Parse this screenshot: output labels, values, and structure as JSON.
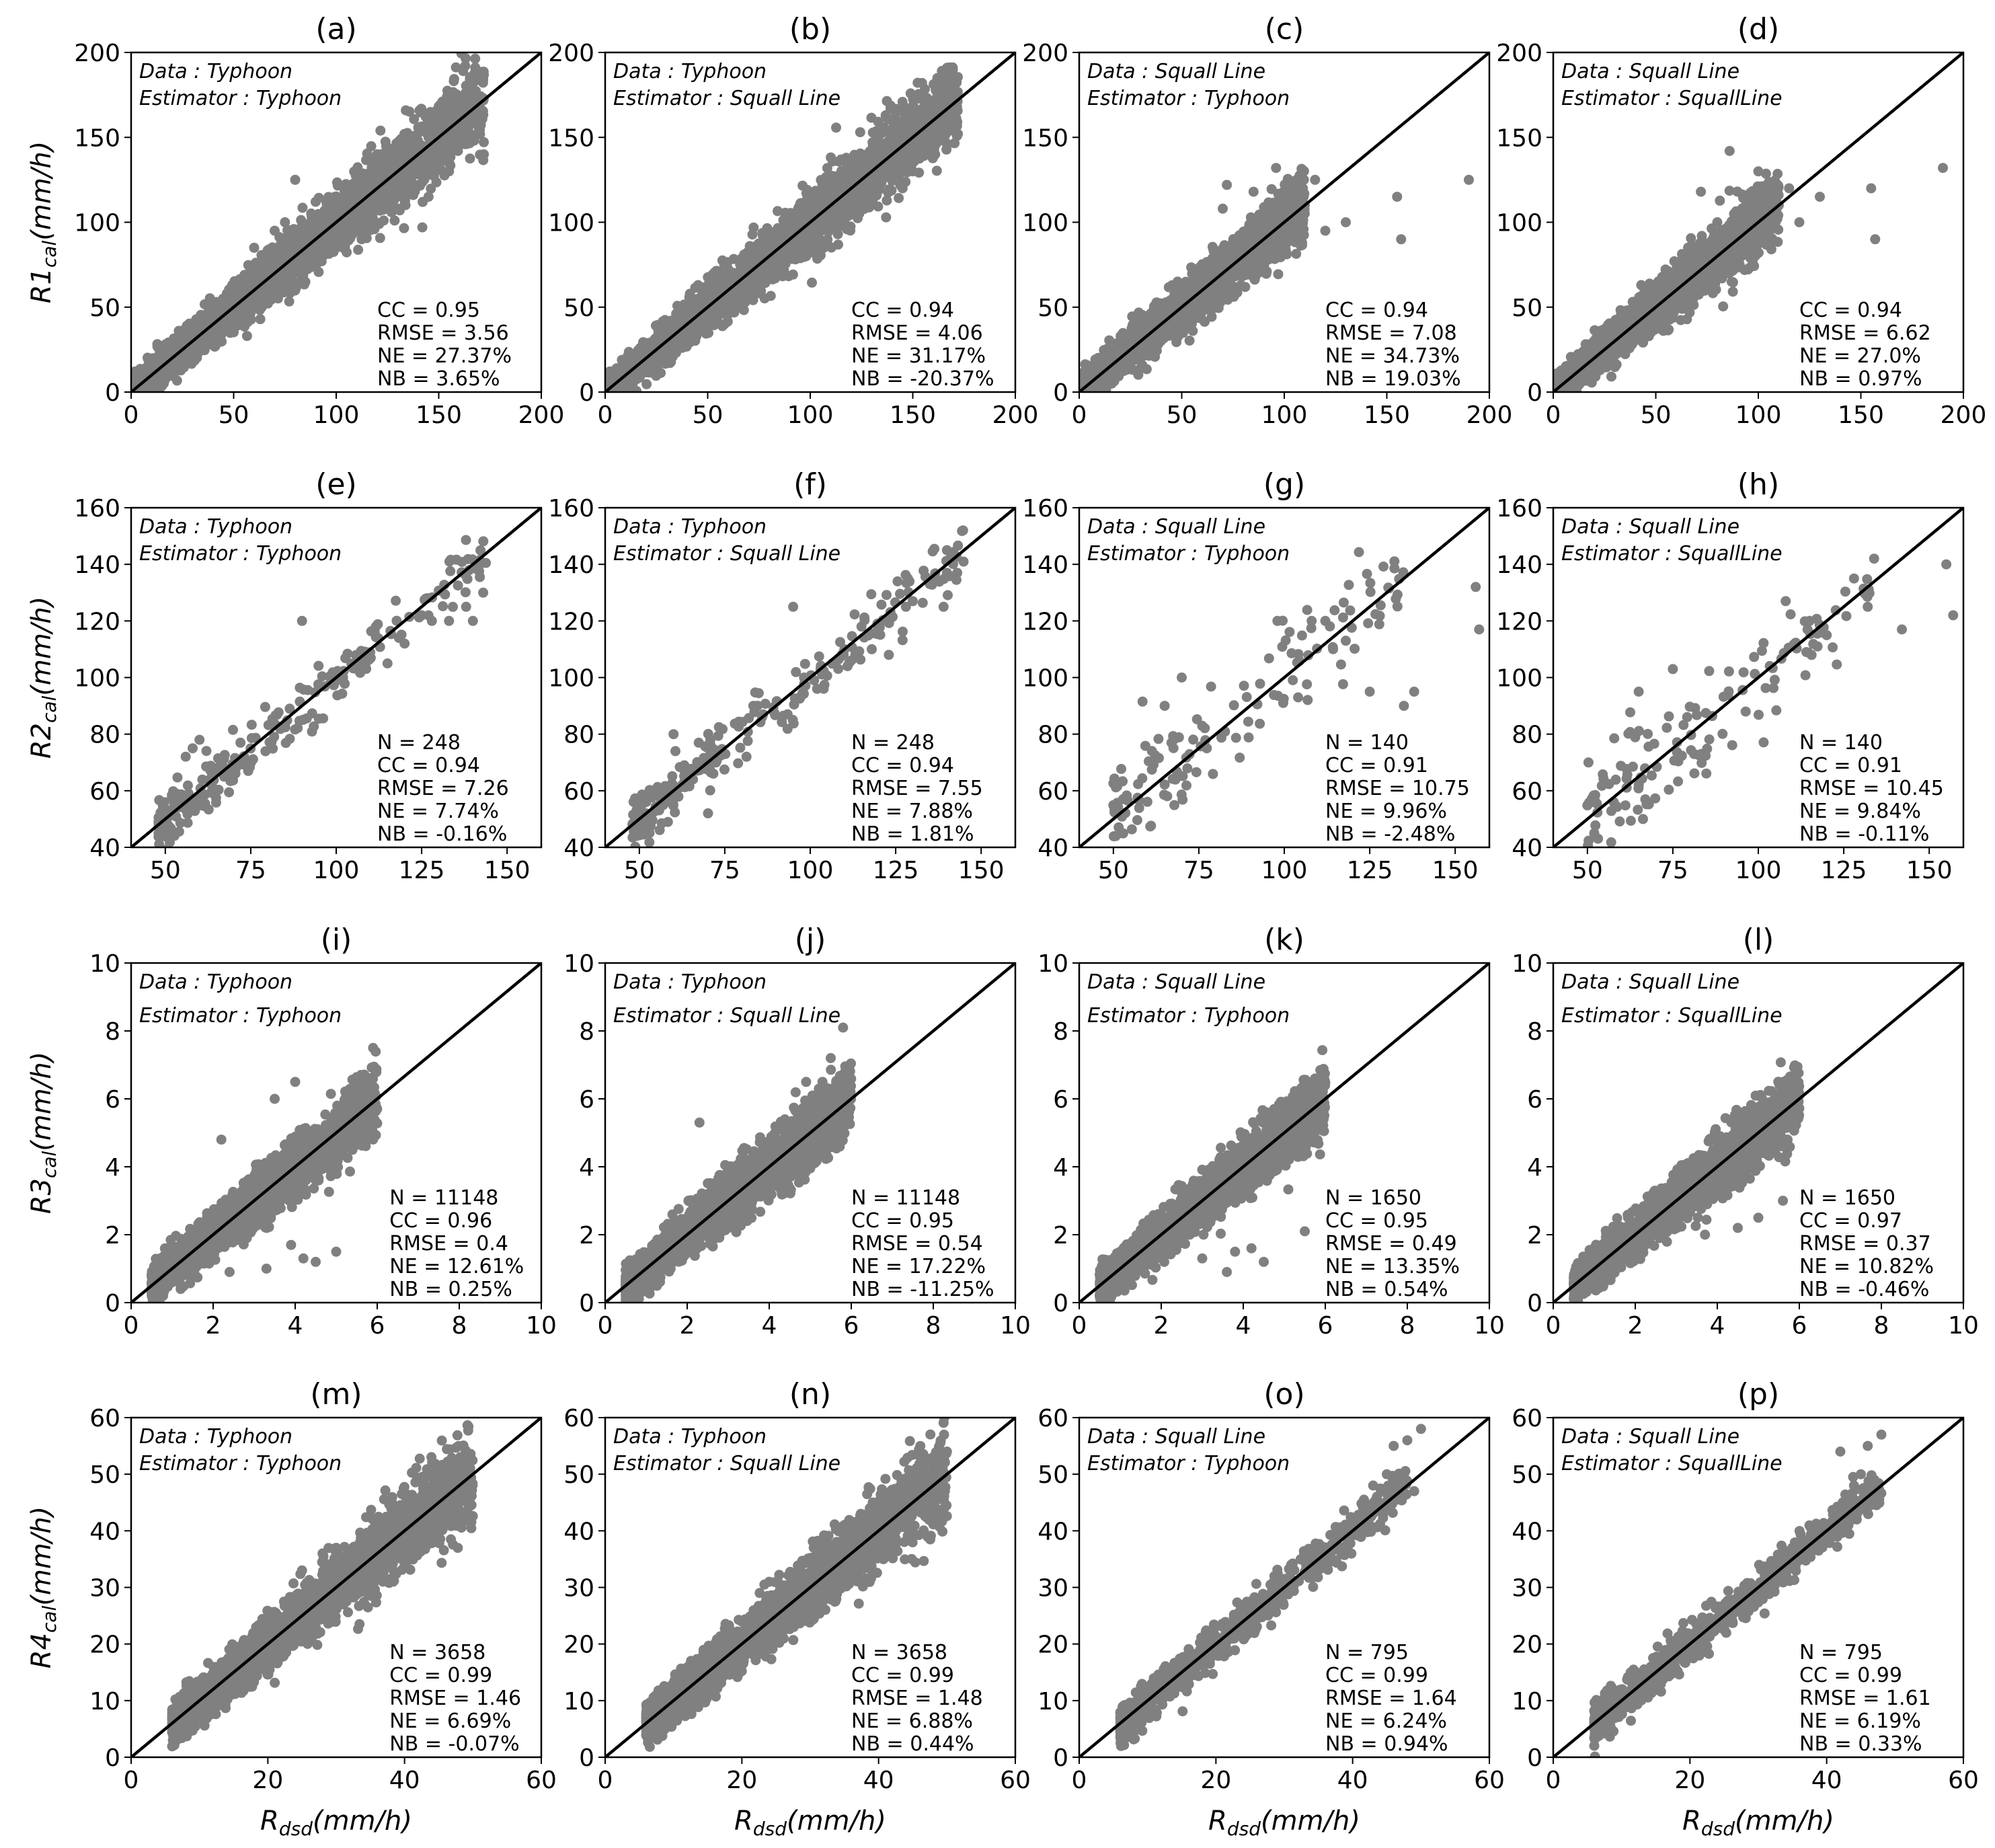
{
  "chart_data": [
    {
      "panel": "(a)",
      "type": "scatter",
      "ylabel_base": "R1",
      "ylabel_sub": "cal",
      "ylabel_unit": "(mm/h)",
      "xlim": [
        0,
        200
      ],
      "ylim": [
        0,
        200
      ],
      "xticks": [
        0,
        50,
        100,
        150,
        200
      ],
      "yticks": [
        0,
        50,
        100,
        150,
        200
      ],
      "data_label": "Data : Typhoon",
      "estimator_label": "Estimator : Typhoon",
      "stats": [
        "CC = 0.95",
        "RMSE = 3.56",
        "NE = 27.37%",
        "NB = 3.65%"
      ],
      "extent": [
        0,
        172
      ],
      "points": [
        [
          84,
          73
        ],
        [
          93,
          93
        ],
        [
          100,
          85
        ],
        [
          105,
          100
        ],
        [
          120,
          140
        ],
        [
          127,
          128
        ],
        [
          131,
          107
        ],
        [
          136,
          139
        ],
        [
          142,
          97
        ],
        [
          145,
          115
        ],
        [
          155,
          130
        ],
        [
          172,
          140
        ],
        [
          60,
          85
        ],
        [
          75,
          100
        ],
        [
          80,
          125
        ],
        [
          70,
          95
        ]
      ]
    },
    {
      "panel": "(b)",
      "type": "scatter",
      "ylabel_base": "",
      "ylabel_sub": "",
      "ylabel_unit": "",
      "xlim": [
        0,
        200
      ],
      "ylim": [
        0,
        200
      ],
      "xticks": [
        0,
        50,
        100,
        150,
        200
      ],
      "yticks": [
        0,
        50,
        100,
        150,
        200
      ],
      "data_label": "Data : Typhoon",
      "estimator_label": "Estimator : Squall Line",
      "stats": [
        "CC = 0.94",
        "RMSE = 4.06",
        "NE = 31.17%",
        "NB = -20.37%"
      ],
      "extent": [
        0,
        172
      ],
      "points": [
        [
          98,
          80
        ],
        [
          105,
          95
        ],
        [
          118,
          110
        ],
        [
          128,
          125
        ],
        [
          130,
          135
        ],
        [
          140,
          150
        ],
        [
          142,
          160
        ],
        [
          145,
          120
        ],
        [
          150,
          130
        ],
        [
          172,
          152
        ],
        [
          110,
          98
        ],
        [
          95,
          100
        ]
      ]
    },
    {
      "panel": "(c)",
      "type": "scatter",
      "ylabel_base": "",
      "ylabel_sub": "",
      "ylabel_unit": "",
      "xlim": [
        0,
        200
      ],
      "ylim": [
        0,
        200
      ],
      "xticks": [
        0,
        50,
        100,
        150,
        200
      ],
      "yticks": [
        0,
        50,
        100,
        150,
        200
      ],
      "data_label": "Data : Squall Line",
      "estimator_label": "Estimator : Typhoon",
      "stats": [
        "CC = 0.94",
        "RMSE = 7.08",
        "NE = 34.73%",
        "NB = 19.03%"
      ],
      "extent": [
        0,
        110
      ],
      "points": [
        [
          72,
          122
        ],
        [
          85,
          118
        ],
        [
          96,
          132
        ],
        [
          105,
          100
        ],
        [
          110,
          110
        ],
        [
          115,
          125
        ],
        [
          120,
          95
        ],
        [
          130,
          100
        ],
        [
          155,
          115
        ],
        [
          157,
          90
        ],
        [
          190,
          125
        ],
        [
          100,
          85
        ],
        [
          70,
          108
        ],
        [
          90,
          95
        ]
      ]
    },
    {
      "panel": "(d)",
      "type": "scatter",
      "ylabel_base": "",
      "ylabel_sub": "",
      "ylabel_unit": "",
      "xlim": [
        0,
        200
      ],
      "ylim": [
        0,
        200
      ],
      "xticks": [
        0,
        50,
        100,
        150,
        200
      ],
      "yticks": [
        0,
        50,
        100,
        150,
        200
      ],
      "data_label": "Data : Squall Line",
      "estimator_label": "Estimator : SquallLine",
      "stats": [
        "CC = 0.94",
        "RMSE = 6.62",
        "NE = 27.0%",
        "NB = 0.97%"
      ],
      "extent": [
        0,
        110
      ],
      "points": [
        [
          72,
          118
        ],
        [
          86,
          142
        ],
        [
          100,
          130
        ],
        [
          110,
          110
        ],
        [
          115,
          120
        ],
        [
          120,
          100
        ],
        [
          130,
          115
        ],
        [
          155,
          120
        ],
        [
          157,
          90
        ],
        [
          190,
          132
        ],
        [
          95,
          95
        ],
        [
          80,
          100
        ]
      ]
    },
    {
      "panel": "(e)",
      "type": "scatter",
      "ylabel_base": "R2",
      "ylabel_sub": "cal",
      "ylabel_unit": "(mm/h)",
      "xlim": [
        40,
        160
      ],
      "ylim": [
        40,
        160
      ],
      "xticks": [
        50,
        75,
        100,
        125,
        150
      ],
      "yticks": [
        40,
        60,
        80,
        100,
        120,
        140,
        160
      ],
      "data_label": "Data : Typhoon",
      "estimator_label": "Estimator : Typhoon",
      "stats": [
        "N = 248",
        "CC = 0.94",
        "RMSE = 7.26",
        "NE = 7.74%",
        "NB = -0.16%"
      ],
      "n": 248,
      "range": [
        48,
        145
      ],
      "spread": 5,
      "points": [
        [
          90,
          120
        ],
        [
          102,
          100
        ],
        [
          115,
          105
        ],
        [
          120,
          112
        ],
        [
          125,
          122
        ],
        [
          128,
          120
        ],
        [
          133,
          120
        ],
        [
          138,
          125
        ],
        [
          140,
          120
        ],
        [
          142,
          140
        ],
        [
          143,
          130
        ],
        [
          60,
          78
        ],
        [
          58,
          75
        ]
      ]
    },
    {
      "panel": "(f)",
      "type": "scatter",
      "ylabel_base": "",
      "ylabel_sub": "",
      "ylabel_unit": "",
      "xlim": [
        40,
        160
      ],
      "ylim": [
        40,
        160
      ],
      "xticks": [
        50,
        75,
        100,
        125,
        150
      ],
      "yticks": [
        40,
        60,
        80,
        100,
        120,
        140,
        160
      ],
      "data_label": "Data : Typhoon",
      "estimator_label": "Estimator : Squall Line",
      "stats": [
        "N = 248",
        "CC = 0.94",
        "RMSE = 7.55",
        "NE = 7.88%",
        "NB = 1.81%"
      ],
      "n": 248,
      "range": [
        48,
        145
      ],
      "spread": 5,
      "points": [
        [
          95,
          125
        ],
        [
          110,
          110
        ],
        [
          118,
          110
        ],
        [
          123,
          108
        ],
        [
          128,
          125
        ],
        [
          130,
          127
        ],
        [
          135,
          133
        ],
        [
          139,
          125
        ],
        [
          140,
          145
        ],
        [
          143,
          137
        ],
        [
          60,
          80
        ]
      ]
    },
    {
      "panel": "(g)",
      "type": "scatter",
      "ylabel_base": "",
      "ylabel_sub": "",
      "ylabel_unit": "",
      "xlim": [
        40,
        160
      ],
      "ylim": [
        40,
        160
      ],
      "xticks": [
        50,
        75,
        100,
        125,
        150
      ],
      "yticks": [
        40,
        60,
        80,
        100,
        120,
        140,
        160
      ],
      "data_label": "Data : Squall Line",
      "estimator_label": "Estimator : Typhoon",
      "stats": [
        "N = 140",
        "CC = 0.91",
        "RMSE = 10.75",
        "NE = 9.96%",
        "NB = -2.48%"
      ],
      "n": 140,
      "range": [
        50,
        135
      ],
      "spread": 9,
      "points": [
        [
          65,
          90
        ],
        [
          70,
          100
        ],
        [
          98,
          120
        ],
        [
          108,
          120
        ],
        [
          112,
          120
        ],
        [
          118,
          113
        ],
        [
          125,
          95
        ],
        [
          135,
          90
        ],
        [
          138,
          95
        ],
        [
          156,
          132
        ],
        [
          157,
          117
        ],
        [
          52,
          45
        ]
      ]
    },
    {
      "panel": "(h)",
      "type": "scatter",
      "ylabel_base": "",
      "ylabel_sub": "",
      "ylabel_unit": "",
      "xlim": [
        40,
        160
      ],
      "ylim": [
        40,
        160
      ],
      "xticks": [
        50,
        75,
        100,
        125,
        150
      ],
      "yticks": [
        40,
        60,
        80,
        100,
        120,
        140,
        160
      ],
      "data_label": "Data : Squall Line",
      "estimator_label": "Estimator : SquallLine",
      "stats": [
        "N = 140",
        "CC = 0.91",
        "RMSE = 10.45",
        "NE = 9.84%",
        "NB = -0.11%"
      ],
      "n": 140,
      "range": [
        50,
        135
      ],
      "spread": 9,
      "points": [
        [
          65,
          95
        ],
        [
          75,
          103
        ],
        [
          108,
          127
        ],
        [
          115,
          120
        ],
        [
          120,
          115
        ],
        [
          128,
          135
        ],
        [
          132,
          125
        ],
        [
          142,
          117
        ],
        [
          155,
          140
        ],
        [
          157,
          122
        ],
        [
          52,
          45
        ]
      ]
    },
    {
      "panel": "(i)",
      "type": "scatter",
      "ylabel_base": "R3",
      "ylabel_sub": "cal",
      "ylabel_unit": "(mm/h)",
      "xlim": [
        0,
        10
      ],
      "ylim": [
        0,
        10
      ],
      "xticks": [
        0,
        2,
        4,
        6,
        8,
        10
      ],
      "yticks": [
        0,
        2,
        4,
        6,
        8,
        10
      ],
      "data_label": "Data : Typhoon",
      "estimator_label": "Estimator : Typhoon",
      "stats": [
        "N = 11148",
        "CC = 0.96",
        "RMSE = 0.4",
        "NE = 12.61%",
        "NB = 0.25%"
      ],
      "extent": [
        0.5,
        6
      ],
      "points": [
        [
          2.2,
          4.8
        ],
        [
          3.5,
          6.0
        ],
        [
          4.0,
          6.5
        ],
        [
          5.9,
          7.5
        ],
        [
          4.2,
          1.3
        ],
        [
          3.3,
          1.0
        ],
        [
          4.5,
          1.2
        ],
        [
          5.0,
          1.5
        ],
        [
          2.4,
          0.9
        ],
        [
          3.9,
          1.7
        ]
      ]
    },
    {
      "panel": "(j)",
      "type": "scatter",
      "ylabel_base": "",
      "ylabel_sub": "",
      "ylabel_unit": "",
      "xlim": [
        0,
        10
      ],
      "ylim": [
        0,
        10
      ],
      "xticks": [
        0,
        2,
        4,
        6,
        8,
        10
      ],
      "yticks": [
        0,
        2,
        4,
        6,
        8,
        10
      ],
      "data_label": "Data : Typhoon",
      "estimator_label": "Estimator : Squall Line",
      "stats": [
        "N = 11148",
        "CC = 0.95",
        "RMSE = 0.54",
        "NE = 17.22%",
        "NB = -11.25%"
      ],
      "extent": [
        0.5,
        6
      ],
      "points": [
        [
          2.3,
          5.3
        ],
        [
          5.5,
          7.2
        ],
        [
          5.8,
          8.1
        ],
        [
          4.9,
          6.5
        ]
      ]
    },
    {
      "panel": "(k)",
      "type": "scatter",
      "ylabel_base": "",
      "ylabel_sub": "",
      "ylabel_unit": "",
      "xlim": [
        0,
        10
      ],
      "ylim": [
        0,
        10
      ],
      "xticks": [
        0,
        2,
        4,
        6,
        8,
        10
      ],
      "yticks": [
        0,
        2,
        4,
        6,
        8,
        10
      ],
      "data_label": "Data : Squall Line",
      "estimator_label": "Estimator : Typhoon",
      "stats": [
        "N = 1650",
        "CC = 0.95",
        "RMSE = 0.49",
        "NE = 13.35%",
        "NB = 0.54%"
      ],
      "extent": [
        0.5,
        6
      ],
      "points": [
        [
          3.8,
          1.5
        ],
        [
          3.6,
          0.9
        ],
        [
          4.5,
          1.2
        ],
        [
          5.5,
          2.1
        ],
        [
          4.2,
          1.6
        ],
        [
          3.0,
          1.3
        ]
      ]
    },
    {
      "panel": "(l)",
      "type": "scatter",
      "ylabel_base": "",
      "ylabel_sub": "",
      "ylabel_unit": "",
      "xlim": [
        0,
        10
      ],
      "ylim": [
        0,
        10
      ],
      "xticks": [
        0,
        2,
        4,
        6,
        8,
        10
      ],
      "yticks": [
        0,
        2,
        4,
        6,
        8,
        10
      ],
      "data_label": "Data : Squall Line",
      "estimator_label": "Estimator : SquallLine",
      "stats": [
        "N = 1650",
        "CC = 0.97",
        "RMSE = 0.37",
        "NE = 10.82%",
        "NB = -0.46%"
      ],
      "extent": [
        0.5,
        6
      ],
      "points": [
        [
          4.5,
          2.2
        ],
        [
          5.0,
          2.5
        ],
        [
          3.7,
          2.0
        ],
        [
          5.6,
          3.0
        ]
      ]
    },
    {
      "panel": "(m)",
      "type": "scatter",
      "ylabel_base": "R4",
      "ylabel_sub": "cal",
      "ylabel_unit": "(mm/h)",
      "xlim": [
        0,
        60
      ],
      "ylim": [
        0,
        60
      ],
      "xticks": [
        0,
        20,
        40,
        60
      ],
      "yticks": [
        0,
        10,
        20,
        30,
        40,
        50,
        60
      ],
      "data_label": "Data : Typhoon",
      "estimator_label": "Estimator : Typhoon",
      "stats": [
        "N = 3658",
        "CC = 0.99",
        "RMSE = 1.46",
        "NE = 6.69%",
        "NB = -0.07%"
      ],
      "extent": [
        6,
        50
      ],
      "points": [
        [
          25,
          33
        ],
        [
          28,
          36
        ],
        [
          30,
          37
        ],
        [
          35,
          37
        ],
        [
          49,
          53
        ]
      ]
    },
    {
      "panel": "(n)",
      "type": "scatter",
      "ylabel_base": "",
      "ylabel_sub": "",
      "ylabel_unit": "",
      "xlim": [
        0,
        60
      ],
      "ylim": [
        0,
        60
      ],
      "xticks": [
        0,
        20,
        40,
        60
      ],
      "yticks": [
        0,
        10,
        20,
        30,
        40,
        50,
        60
      ],
      "data_label": "Data : Typhoon",
      "estimator_label": "Estimator : Squall Line",
      "stats": [
        "N = 3658",
        "CC = 0.99",
        "RMSE = 1.48",
        "NE = 6.88%",
        "NB = 0.44%"
      ],
      "extent": [
        6,
        50
      ],
      "points": [
        [
          24,
          31
        ],
        [
          33,
          37
        ],
        [
          50,
          54
        ]
      ]
    },
    {
      "panel": "(o)",
      "type": "scatter",
      "ylabel_base": "",
      "ylabel_sub": "",
      "ylabel_unit": "",
      "xlim": [
        0,
        60
      ],
      "ylim": [
        0,
        60
      ],
      "xticks": [
        0,
        20,
        40,
        60
      ],
      "yticks": [
        0,
        10,
        20,
        30,
        40,
        50,
        60
      ],
      "data_label": "Data : Squall Line",
      "estimator_label": "Estimator : Typhoon",
      "stats": [
        "N = 795",
        "CC = 0.99",
        "RMSE = 1.64",
        "NE = 6.24%",
        "NB = 0.94%"
      ],
      "n": 795,
      "range": [
        6,
        48
      ],
      "spread": 1.8,
      "points": [
        [
          46,
          55
        ],
        [
          48,
          56
        ],
        [
          50,
          58
        ],
        [
          43,
          48
        ],
        [
          45,
          50
        ],
        [
          47,
          47
        ],
        [
          49,
          47
        ]
      ]
    },
    {
      "panel": "(p)",
      "type": "scatter",
      "ylabel_base": "",
      "ylabel_sub": "",
      "ylabel_unit": "",
      "xlim": [
        0,
        60
      ],
      "ylim": [
        0,
        60
      ],
      "xticks": [
        0,
        20,
        40,
        60
      ],
      "yticks": [
        0,
        10,
        20,
        30,
        40,
        50,
        60
      ],
      "data_label": "Data : Squall Line",
      "estimator_label": "Estimator : SquallLine",
      "stats": [
        "N = 795",
        "CC = 0.99",
        "RMSE = 1.61",
        "NE = 6.19%",
        "NB = 0.33%"
      ],
      "n": 795,
      "range": [
        6,
        48
      ],
      "spread": 1.8,
      "points": [
        [
          42,
          54
        ],
        [
          46,
          55
        ],
        [
          48,
          57
        ],
        [
          45,
          50
        ],
        [
          47,
          49
        ],
        [
          44,
          48
        ]
      ]
    }
  ],
  "x_axis_label": {
    "base": "R",
    "sub": "dsd",
    "unit": "(mm/h)"
  },
  "colors": {
    "points": "#808080",
    "line": "#000000",
    "axes": "#000000"
  }
}
